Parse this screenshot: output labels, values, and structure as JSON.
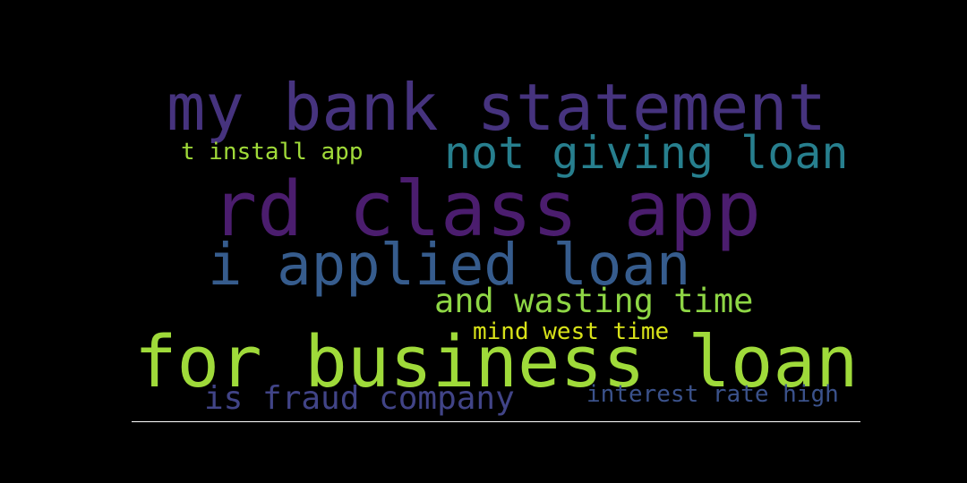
{
  "words": [
    {
      "text": "my bank statement",
      "color": "#46337e"
    },
    {
      "text": "t install app",
      "color": "#a0da39"
    },
    {
      "text": "not giving loan",
      "color": "#277f8e"
    },
    {
      "text": "rd class app",
      "color": "#4b1d6e"
    },
    {
      "text": "i applied loan",
      "color": "#365c8d"
    },
    {
      "text": "and wasting time",
      "color": "#8ed645"
    },
    {
      "text": "mind west time",
      "color": "#d8e219"
    },
    {
      "text": "for business loan",
      "color": "#9fda3a"
    },
    {
      "text": "is fraud company",
      "color": "#414487"
    },
    {
      "text": "interest rate high",
      "color": "#3b528b"
    }
  ]
}
